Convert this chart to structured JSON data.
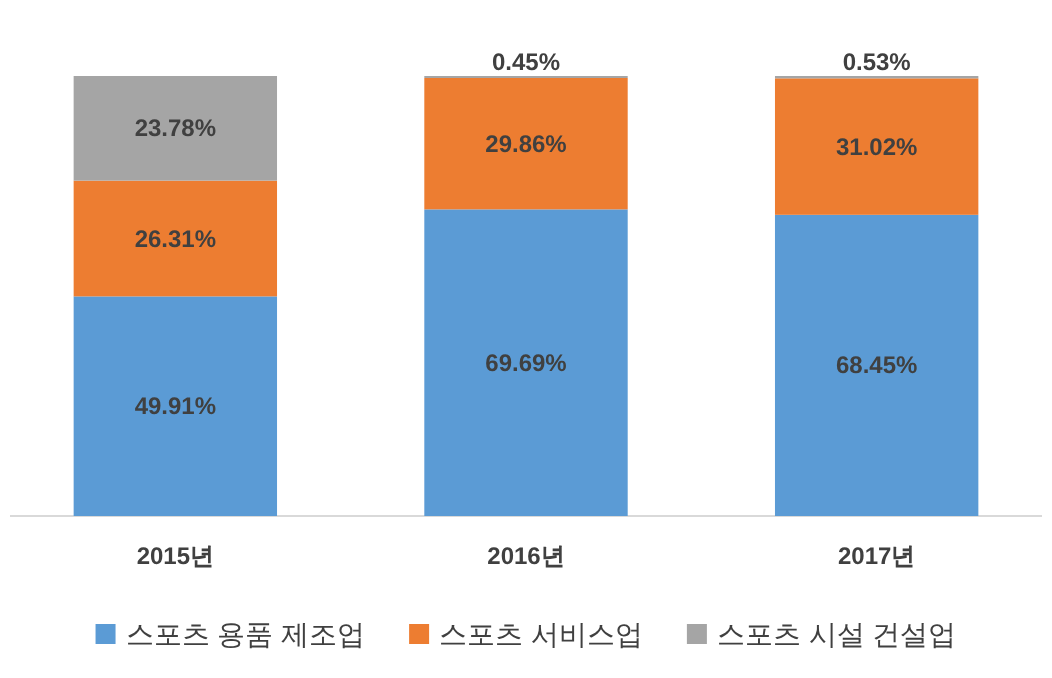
{
  "chart_data": {
    "type": "bar",
    "stacked": true,
    "legend": "bottom",
    "tick_labels": "x",
    "categories": [
      "2015년",
      "2016년",
      "2017년"
    ],
    "series": [
      {
        "name": "스포츠 용품 제조업",
        "color": "#5b9bd5",
        "values": [
          49.91,
          69.69,
          68.45
        ],
        "value_labels": [
          "49.91%",
          "69.69%",
          "68.45%"
        ]
      },
      {
        "name": "스포츠 서비스업",
        "color": "#ed7d31",
        "values": [
          26.31,
          29.86,
          31.02
        ],
        "value_labels": [
          "26.31%",
          "29.86%",
          "31.02%"
        ]
      },
      {
        "name": "스포츠 시설 건설업",
        "color": "#a5a5a5",
        "values": [
          23.78,
          0.45,
          0.53
        ],
        "value_labels": [
          "23.78%",
          "0.45%",
          "0.53%"
        ]
      }
    ]
  }
}
